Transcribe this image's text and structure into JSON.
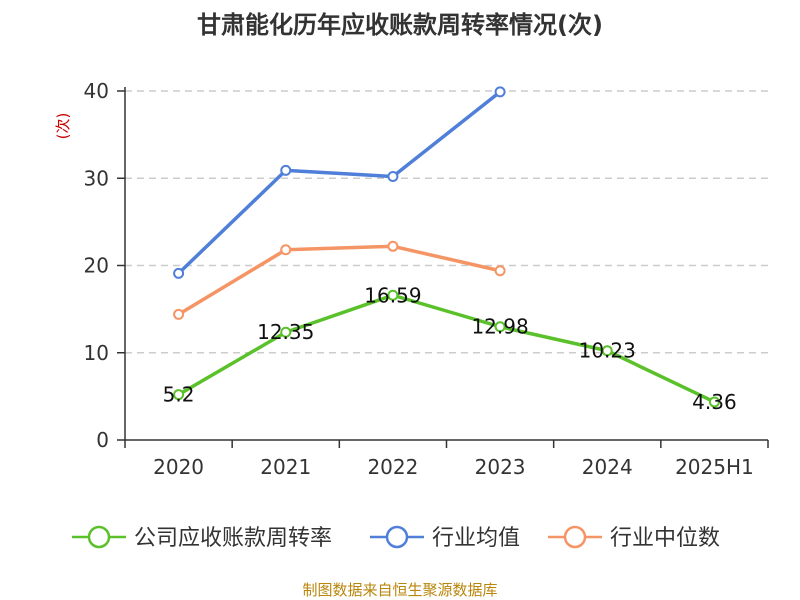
{
  "chart_data": {
    "type": "line",
    "title": "甘肃能化历年应收账款周转率情况(次)",
    "ylabel": "(次)",
    "xlabel": "",
    "categories": [
      "2020",
      "2021",
      "2022",
      "2023",
      "2024",
      "2025H1"
    ],
    "ylim": [
      0,
      40
    ],
    "yticks": [
      0,
      10,
      20,
      30,
      40
    ],
    "grid": true,
    "legend_position": "bottom",
    "series": [
      {
        "name": "公司应收账款周转率",
        "color": "#5ac12b",
        "values": [
          5.2,
          12.35,
          16.59,
          12.98,
          10.23,
          4.36
        ],
        "labels": [
          "5.2",
          "12.35",
          "16.59",
          "12.98",
          "10.23",
          "4.36"
        ]
      },
      {
        "name": "行业均值",
        "color": "#4f7fd9",
        "values": [
          19.1,
          30.9,
          30.2,
          39.9,
          null,
          null
        ]
      },
      {
        "name": "行业中位数",
        "color": "#f59464",
        "values": [
          14.4,
          21.8,
          22.2,
          19.4,
          null,
          null
        ]
      }
    ],
    "source": "制图数据来自恒生聚源数据库"
  }
}
